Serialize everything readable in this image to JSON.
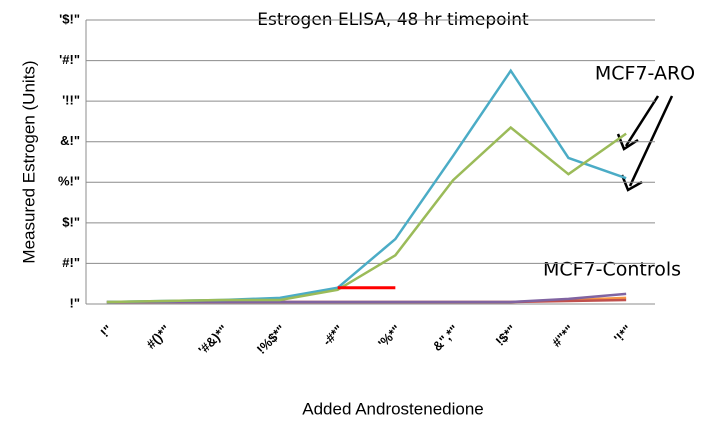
{
  "chart_data": {
    "type": "line",
    "title": "Estrogen ELISA, 48 hr timepoint",
    "x_label": "Added Androstenedione",
    "y_label": "Measured Estrogen (Units)",
    "annotations": [
      "MCF7-ARO",
      "MCF7-Controls"
    ],
    "categories": [
      "!\"",
      "#()*\"",
      "'#&)*\"",
      "!%$*\"",
      "-#*\"",
      "'%*\"",
      "&\",*\"",
      "!$*\"",
      "#\"*\"",
      "'!*\""
    ],
    "series": [
      {
        "color": "#4bacc6",
        "values": [
          1,
          1.5,
          2,
          3,
          8,
          32,
          73,
          115,
          72,
          62
        ]
      },
      {
        "color": "#9bbb59",
        "values": [
          1,
          1.5,
          2,
          2,
          7,
          24,
          61,
          87,
          64,
          84
        ]
      },
      {
        "color": "#ff0000",
        "values": [
          null,
          null,
          null,
          null,
          8,
          8,
          null,
          null,
          null,
          null
        ]
      },
      {
        "color": "#f79646",
        "values": [
          1,
          1,
          1,
          1,
          1,
          1,
          1,
          1,
          2,
          3
        ]
      },
      {
        "color": "#8064a2",
        "values": [
          1,
          1,
          1,
          1,
          1,
          1,
          1,
          1,
          2.5,
          5
        ]
      },
      {
        "color": "#c0504d",
        "values": [
          1,
          1,
          1,
          1,
          1,
          1,
          1,
          1,
          1.5,
          2
        ]
      }
    ],
    "ylim": [
      0,
      140
    ],
    "yticks": [
      {
        "value": 0,
        "label": "!\""
      },
      {
        "value": 20,
        "label": "#!\""
      },
      {
        "value": 40,
        "label": "$!\""
      },
      {
        "value": 60,
        "label": "%!\""
      },
      {
        "value": 80,
        "label": "&!\""
      },
      {
        "value": 100,
        "label": "'!!\""
      },
      {
        "value": 120,
        "label": "'#!\""
      },
      {
        "value": 140,
        "label": "'$!\""
      }
    ],
    "grid": true
  }
}
